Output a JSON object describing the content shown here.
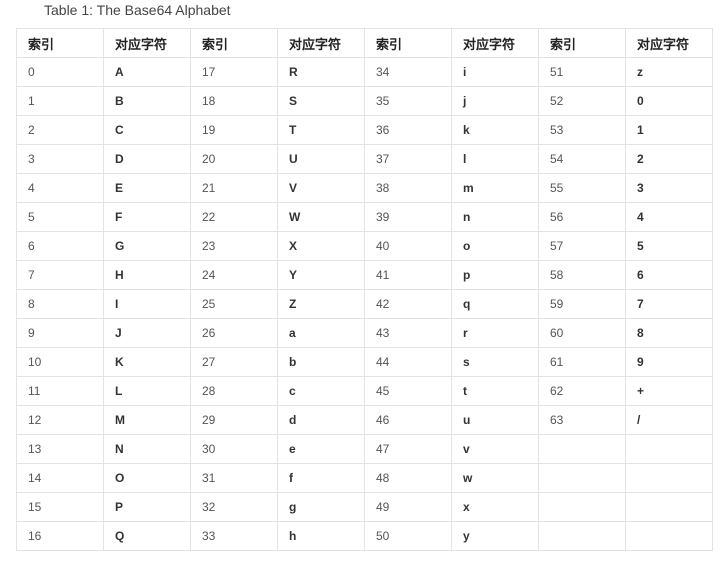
{
  "caption": "Table 1: The Base64 Alphabet",
  "headers": [
    "索引",
    "对应字符",
    "索引",
    "对应字符",
    "索引",
    "对应字符",
    "索引",
    "对应字符"
  ],
  "rows": [
    [
      "0",
      "A",
      "17",
      "R",
      "34",
      "i",
      "51",
      "z"
    ],
    [
      "1",
      "B",
      "18",
      "S",
      "35",
      "j",
      "52",
      "0"
    ],
    [
      "2",
      "C",
      "19",
      "T",
      "36",
      "k",
      "53",
      "1"
    ],
    [
      "3",
      "D",
      "20",
      "U",
      "37",
      "l",
      "54",
      "2"
    ],
    [
      "4",
      "E",
      "21",
      "V",
      "38",
      "m",
      "55",
      "3"
    ],
    [
      "5",
      "F",
      "22",
      "W",
      "39",
      "n",
      "56",
      "4"
    ],
    [
      "6",
      "G",
      "23",
      "X",
      "40",
      "o",
      "57",
      "5"
    ],
    [
      "7",
      "H",
      "24",
      "Y",
      "41",
      "p",
      "58",
      "6"
    ],
    [
      "8",
      "I",
      "25",
      "Z",
      "42",
      "q",
      "59",
      "7"
    ],
    [
      "9",
      "J",
      "26",
      "a",
      "43",
      "r",
      "60",
      "8"
    ],
    [
      "10",
      "K",
      "27",
      "b",
      "44",
      "s",
      "61",
      "9"
    ],
    [
      "11",
      "L",
      "28",
      "c",
      "45",
      "t",
      "62",
      "+"
    ],
    [
      "12",
      "M",
      "29",
      "d",
      "46",
      "u",
      "63",
      "/"
    ],
    [
      "13",
      "N",
      "30",
      "e",
      "47",
      "v",
      "",
      ""
    ],
    [
      "14",
      "O",
      "31",
      "f",
      "48",
      "w",
      "",
      ""
    ],
    [
      "15",
      "P",
      "32",
      "g",
      "49",
      "x",
      "",
      ""
    ],
    [
      "16",
      "Q",
      "33",
      "h",
      "50",
      "y",
      "",
      ""
    ]
  ]
}
